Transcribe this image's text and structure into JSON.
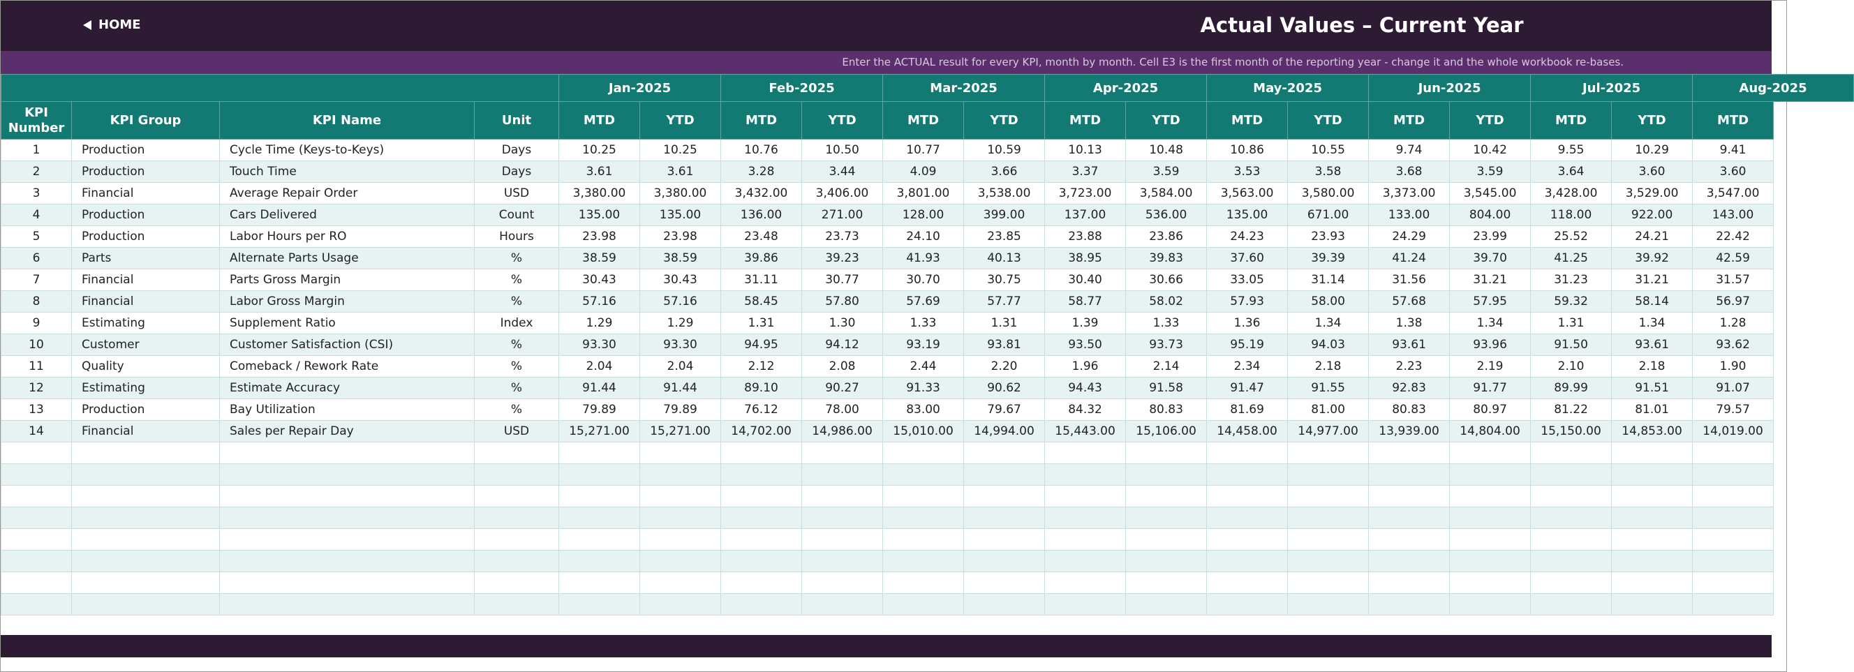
{
  "header": {
    "home": "HOME",
    "title": "Actual Values  –  Current Year",
    "subtitle": "Enter the ACTUAL result for every KPI, month by month. Cell E3 is the first month of the reporting year - change it and the whole workbook re-bases."
  },
  "table": {
    "columns": [
      "KPI Number",
      "KPI Group",
      "KPI Name",
      "Unit"
    ],
    "months": [
      "Jan-2025",
      "Feb-2025",
      "Mar-2025",
      "Apr-2025",
      "May-2025",
      "Jun-2025",
      "Jul-2025",
      "Aug-2025"
    ],
    "subcolumns": [
      "MTD",
      "YTD",
      "MTD",
      "YTD",
      "MTD",
      "YTD",
      "MTD",
      "YTD",
      "MTD",
      "YTD",
      "MTD",
      "YTD",
      "MTD",
      "YTD",
      "MTD"
    ],
    "rows": [
      [
        "1",
        "Production",
        "Cycle Time (Keys-to-Keys)",
        "Days",
        "10.25",
        "10.25",
        "10.76",
        "10.50",
        "10.77",
        "10.59",
        "10.13",
        "10.48",
        "10.86",
        "10.55",
        "9.74",
        "10.42",
        "9.55",
        "10.29",
        "9.41"
      ],
      [
        "2",
        "Production",
        "Touch Time",
        "Days",
        "3.61",
        "3.61",
        "3.28",
        "3.44",
        "4.09",
        "3.66",
        "3.37",
        "3.59",
        "3.53",
        "3.58",
        "3.68",
        "3.59",
        "3.64",
        "3.60",
        "3.60"
      ],
      [
        "3",
        "Financial",
        "Average Repair Order",
        "USD",
        "3,380.00",
        "3,380.00",
        "3,432.00",
        "3,406.00",
        "3,801.00",
        "3,538.00",
        "3,723.00",
        "3,584.00",
        "3,563.00",
        "3,580.00",
        "3,373.00",
        "3,545.00",
        "3,428.00",
        "3,529.00",
        "3,547.00"
      ],
      [
        "4",
        "Production",
        "Cars Delivered",
        "Count",
        "135.00",
        "135.00",
        "136.00",
        "271.00",
        "128.00",
        "399.00",
        "137.00",
        "536.00",
        "135.00",
        "671.00",
        "133.00",
        "804.00",
        "118.00",
        "922.00",
        "143.00"
      ],
      [
        "5",
        "Production",
        "Labor Hours per RO",
        "Hours",
        "23.98",
        "23.98",
        "23.48",
        "23.73",
        "24.10",
        "23.85",
        "23.88",
        "23.86",
        "24.23",
        "23.93",
        "24.29",
        "23.99",
        "25.52",
        "24.21",
        "22.42"
      ],
      [
        "6",
        "Parts",
        "Alternate Parts Usage",
        "%",
        "38.59",
        "38.59",
        "39.86",
        "39.23",
        "41.93",
        "40.13",
        "38.95",
        "39.83",
        "37.60",
        "39.39",
        "41.24",
        "39.70",
        "41.25",
        "39.92",
        "42.59"
      ],
      [
        "7",
        "Financial",
        "Parts Gross Margin",
        "%",
        "30.43",
        "30.43",
        "31.11",
        "30.77",
        "30.70",
        "30.75",
        "30.40",
        "30.66",
        "33.05",
        "31.14",
        "31.56",
        "31.21",
        "31.23",
        "31.21",
        "31.57"
      ],
      [
        "8",
        "Financial",
        "Labor Gross Margin",
        "%",
        "57.16",
        "57.16",
        "58.45",
        "57.80",
        "57.69",
        "57.77",
        "58.77",
        "58.02",
        "57.93",
        "58.00",
        "57.68",
        "57.95",
        "59.32",
        "58.14",
        "56.97"
      ],
      [
        "9",
        "Estimating",
        "Supplement Ratio",
        "Index",
        "1.29",
        "1.29",
        "1.31",
        "1.30",
        "1.33",
        "1.31",
        "1.39",
        "1.33",
        "1.36",
        "1.34",
        "1.38",
        "1.34",
        "1.31",
        "1.34",
        "1.28"
      ],
      [
        "10",
        "Customer",
        "Customer Satisfaction (CSI)",
        "%",
        "93.30",
        "93.30",
        "94.95",
        "94.12",
        "93.19",
        "93.81",
        "93.50",
        "93.73",
        "95.19",
        "94.03",
        "93.61",
        "93.96",
        "91.50",
        "93.61",
        "93.62"
      ],
      [
        "11",
        "Quality",
        "Comeback / Rework Rate",
        "%",
        "2.04",
        "2.04",
        "2.12",
        "2.08",
        "2.44",
        "2.20",
        "1.96",
        "2.14",
        "2.34",
        "2.18",
        "2.23",
        "2.19",
        "2.10",
        "2.18",
        "1.90"
      ],
      [
        "12",
        "Estimating",
        "Estimate Accuracy",
        "%",
        "91.44",
        "91.44",
        "89.10",
        "90.27",
        "91.33",
        "90.62",
        "94.43",
        "91.58",
        "91.47",
        "91.55",
        "92.83",
        "91.77",
        "89.99",
        "91.51",
        "91.07"
      ],
      [
        "13",
        "Production",
        "Bay Utilization",
        "%",
        "79.89",
        "79.89",
        "76.12",
        "78.00",
        "83.00",
        "79.67",
        "84.32",
        "80.83",
        "81.69",
        "81.00",
        "80.83",
        "80.97",
        "81.22",
        "81.01",
        "79.57"
      ],
      [
        "14",
        "Financial",
        "Sales per Repair Day",
        "USD",
        "15,271.00",
        "15,271.00",
        "14,702.00",
        "14,986.00",
        "15,010.00",
        "14,994.00",
        "15,443.00",
        "15,106.00",
        "14,458.00",
        "14,977.00",
        "13,939.00",
        "14,804.00",
        "15,150.00",
        "14,853.00",
        "14,019.00"
      ]
    ]
  }
}
